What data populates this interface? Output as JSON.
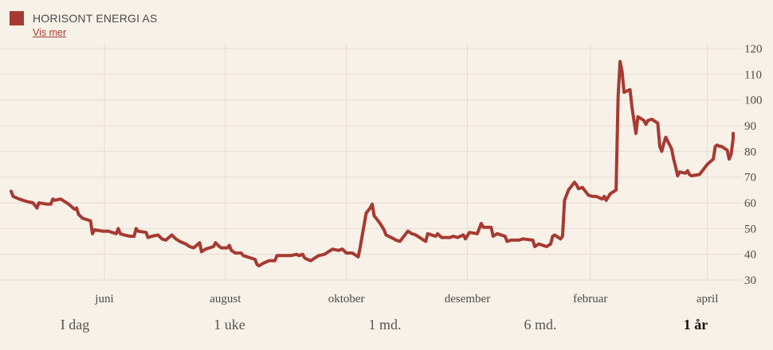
{
  "legend": {
    "series_name": "HORISONT ENERGI AS",
    "link_label": "Vis mer",
    "color": "#a63a32"
  },
  "range_buttons": [
    {
      "label": "I dag",
      "active": false
    },
    {
      "label": "1 uke",
      "active": false
    },
    {
      "label": "1 md.",
      "active": false
    },
    {
      "label": "6 md.",
      "active": false
    },
    {
      "label": "1 år",
      "active": true
    }
  ],
  "chart_data": {
    "type": "line",
    "title": "",
    "xlabel": "",
    "ylabel": "",
    "ylim": [
      30,
      120
    ],
    "yticks": [
      30,
      40,
      50,
      60,
      70,
      80,
      90,
      100,
      110,
      120
    ],
    "grid": true,
    "x_range": [
      "2021-04-15",
      "2022-04-14"
    ],
    "xticks": [
      {
        "label": "juni",
        "date": "2021-06-01"
      },
      {
        "label": "august",
        "date": "2021-08-01"
      },
      {
        "label": "oktober",
        "date": "2021-10-01"
      },
      {
        "label": "desember",
        "date": "2021-12-01"
      },
      {
        "label": "februar",
        "date": "2022-02-01"
      },
      {
        "label": "april",
        "date": "2022-04-01"
      }
    ],
    "series": [
      {
        "name": "HORISONT ENERGI AS",
        "color": "#a63a32",
        "points": [
          [
            "2021-04-15",
            64.5
          ],
          [
            "2021-04-16",
            62.5
          ],
          [
            "2021-04-19",
            61.5
          ],
          [
            "2021-04-21",
            61
          ],
          [
            "2021-04-23",
            60.5
          ],
          [
            "2021-04-26",
            60
          ],
          [
            "2021-04-28",
            58
          ],
          [
            "2021-04-29",
            60
          ],
          [
            "2021-05-03",
            59.5
          ],
          [
            "2021-05-05",
            59.5
          ],
          [
            "2021-05-06",
            61.5
          ],
          [
            "2021-05-07",
            61
          ],
          [
            "2021-05-10",
            61.5
          ],
          [
            "2021-05-12",
            60.5
          ],
          [
            "2021-05-14",
            59.5
          ],
          [
            "2021-05-17",
            57.5
          ],
          [
            "2021-05-18",
            58
          ],
          [
            "2021-05-19",
            55.5
          ],
          [
            "2021-05-21",
            54
          ],
          [
            "2021-05-25",
            53
          ],
          [
            "2021-05-26",
            48
          ],
          [
            "2021-05-27",
            49.5
          ],
          [
            "2021-05-31",
            49
          ],
          [
            "2021-06-03",
            49
          ],
          [
            "2021-06-07",
            48
          ],
          [
            "2021-06-08",
            50
          ],
          [
            "2021-06-09",
            48
          ],
          [
            "2021-06-11",
            47.5
          ],
          [
            "2021-06-14",
            47
          ],
          [
            "2021-06-16",
            47
          ],
          [
            "2021-06-17",
            50
          ],
          [
            "2021-06-18",
            49
          ],
          [
            "2021-06-22",
            48.5
          ],
          [
            "2021-06-23",
            46.5
          ],
          [
            "2021-06-25",
            47
          ],
          [
            "2021-06-28",
            47.5
          ],
          [
            "2021-06-30",
            46
          ],
          [
            "2021-07-02",
            45.5
          ],
          [
            "2021-07-05",
            47.5
          ],
          [
            "2021-07-07",
            46
          ],
          [
            "2021-07-09",
            45
          ],
          [
            "2021-07-12",
            44
          ],
          [
            "2021-07-14",
            43
          ],
          [
            "2021-07-16",
            42.5
          ],
          [
            "2021-07-19",
            44.5
          ],
          [
            "2021-07-20",
            41
          ],
          [
            "2021-07-22",
            42
          ],
          [
            "2021-07-26",
            43
          ],
          [
            "2021-07-27",
            44.5
          ],
          [
            "2021-07-29",
            43
          ],
          [
            "2021-07-30",
            42.5
          ],
          [
            "2021-08-02",
            42.5
          ],
          [
            "2021-08-03",
            43.5
          ],
          [
            "2021-08-04",
            41.5
          ],
          [
            "2021-08-06",
            40.5
          ],
          [
            "2021-08-09",
            40.5
          ],
          [
            "2021-08-10",
            39.5
          ],
          [
            "2021-08-12",
            39
          ],
          [
            "2021-08-16",
            38
          ],
          [
            "2021-08-17",
            36
          ],
          [
            "2021-08-18",
            35.5
          ],
          [
            "2021-08-20",
            36.5
          ],
          [
            "2021-08-23",
            37.5
          ],
          [
            "2021-08-26",
            37.5
          ],
          [
            "2021-08-27",
            39.5
          ],
          [
            "2021-08-31",
            39.5
          ],
          [
            "2021-09-03",
            39.5
          ],
          [
            "2021-09-06",
            40
          ],
          [
            "2021-09-07",
            39.5
          ],
          [
            "2021-09-09",
            40
          ],
          [
            "2021-09-10",
            38.5
          ],
          [
            "2021-09-13",
            37.5
          ],
          [
            "2021-09-15",
            38.5
          ],
          [
            "2021-09-17",
            39.5
          ],
          [
            "2021-09-20",
            40
          ],
          [
            "2021-09-22",
            41
          ],
          [
            "2021-09-24",
            42
          ],
          [
            "2021-09-27",
            41.5
          ],
          [
            "2021-09-29",
            42
          ],
          [
            "2021-10-01",
            40.5
          ],
          [
            "2021-10-04",
            40.5
          ],
          [
            "2021-10-06",
            39.5
          ],
          [
            "2021-10-07",
            39
          ],
          [
            "2021-10-08",
            43
          ],
          [
            "2021-10-11",
            56
          ],
          [
            "2021-10-13",
            58
          ],
          [
            "2021-10-14",
            59.5
          ],
          [
            "2021-10-15",
            55
          ],
          [
            "2021-10-18",
            52
          ],
          [
            "2021-10-20",
            49.5
          ],
          [
            "2021-10-21",
            47.5
          ],
          [
            "2021-10-25",
            46
          ],
          [
            "2021-10-26",
            45.5
          ],
          [
            "2021-10-28",
            45
          ],
          [
            "2021-11-01",
            49
          ],
          [
            "2021-11-03",
            48
          ],
          [
            "2021-11-05",
            47.5
          ],
          [
            "2021-11-08",
            46
          ],
          [
            "2021-11-10",
            45
          ],
          [
            "2021-11-11",
            48
          ],
          [
            "2021-11-15",
            47
          ],
          [
            "2021-11-16",
            48
          ],
          [
            "2021-11-18",
            46.5
          ],
          [
            "2021-11-22",
            46.5
          ],
          [
            "2021-11-24",
            47
          ],
          [
            "2021-11-26",
            46.5
          ],
          [
            "2021-11-29",
            47.5
          ],
          [
            "2021-11-30",
            46
          ],
          [
            "2021-12-02",
            48.5
          ],
          [
            "2021-12-06",
            48
          ],
          [
            "2021-12-08",
            52
          ],
          [
            "2021-12-09",
            50.5
          ],
          [
            "2021-12-13",
            50.5
          ],
          [
            "2021-12-14",
            47
          ],
          [
            "2021-12-16",
            48
          ],
          [
            "2021-12-20",
            47
          ],
          [
            "2021-12-21",
            45
          ],
          [
            "2021-12-23",
            45.5
          ],
          [
            "2021-12-27",
            45.5
          ],
          [
            "2021-12-29",
            46
          ],
          [
            "2022-01-03",
            45.5
          ],
          [
            "2022-01-04",
            43
          ],
          [
            "2022-01-06",
            44
          ],
          [
            "2022-01-10",
            43
          ],
          [
            "2022-01-12",
            44
          ],
          [
            "2022-01-13",
            47
          ],
          [
            "2022-01-14",
            47.5
          ],
          [
            "2022-01-17",
            46
          ],
          [
            "2022-01-18",
            47
          ],
          [
            "2022-01-19",
            61
          ],
          [
            "2022-01-21",
            65
          ],
          [
            "2022-01-24",
            68
          ],
          [
            "2022-01-25",
            67
          ],
          [
            "2022-01-26",
            65.5
          ],
          [
            "2022-01-28",
            66
          ],
          [
            "2022-01-31",
            63
          ],
          [
            "2022-02-02",
            62.5
          ],
          [
            "2022-02-04",
            62.5
          ],
          [
            "2022-02-07",
            61.5
          ],
          [
            "2022-02-08",
            62.5
          ],
          [
            "2022-02-09",
            61
          ],
          [
            "2022-02-11",
            63.5
          ],
          [
            "2022-02-14",
            65
          ],
          [
            "2022-02-15",
            101
          ],
          [
            "2022-02-16",
            115
          ],
          [
            "2022-02-17",
            111
          ],
          [
            "2022-02-18",
            103
          ],
          [
            "2022-02-21",
            104
          ],
          [
            "2022-02-22",
            97
          ],
          [
            "2022-02-24",
            87
          ],
          [
            "2022-02-25",
            93.5
          ],
          [
            "2022-02-28",
            92
          ],
          [
            "2022-03-01",
            90.5
          ],
          [
            "2022-03-02",
            92
          ],
          [
            "2022-03-04",
            92.5
          ],
          [
            "2022-03-07",
            91
          ],
          [
            "2022-03-08",
            82
          ],
          [
            "2022-03-09",
            80
          ],
          [
            "2022-03-10",
            83
          ],
          [
            "2022-03-11",
            85.5
          ],
          [
            "2022-03-14",
            81
          ],
          [
            "2022-03-15",
            77
          ],
          [
            "2022-03-16",
            74
          ],
          [
            "2022-03-17",
            70.5
          ],
          [
            "2022-03-18",
            72
          ],
          [
            "2022-03-21",
            71.5
          ],
          [
            "2022-03-22",
            72.5
          ],
          [
            "2022-03-23",
            71
          ],
          [
            "2022-03-24",
            70.5
          ],
          [
            "2022-03-28",
            71
          ],
          [
            "2022-03-29",
            72
          ],
          [
            "2022-03-30",
            73
          ],
          [
            "2022-03-31",
            74
          ],
          [
            "2022-04-01",
            75
          ],
          [
            "2022-04-04",
            77
          ],
          [
            "2022-04-05",
            82
          ],
          [
            "2022-04-06",
            82.5
          ],
          [
            "2022-04-07",
            82
          ],
          [
            "2022-04-08",
            82
          ],
          [
            "2022-04-11",
            80.5
          ],
          [
            "2022-04-12",
            77
          ],
          [
            "2022-04-13",
            79
          ],
          [
            "2022-04-14",
            85
          ],
          [
            "2022-04-14",
            87
          ]
        ]
      }
    ]
  }
}
